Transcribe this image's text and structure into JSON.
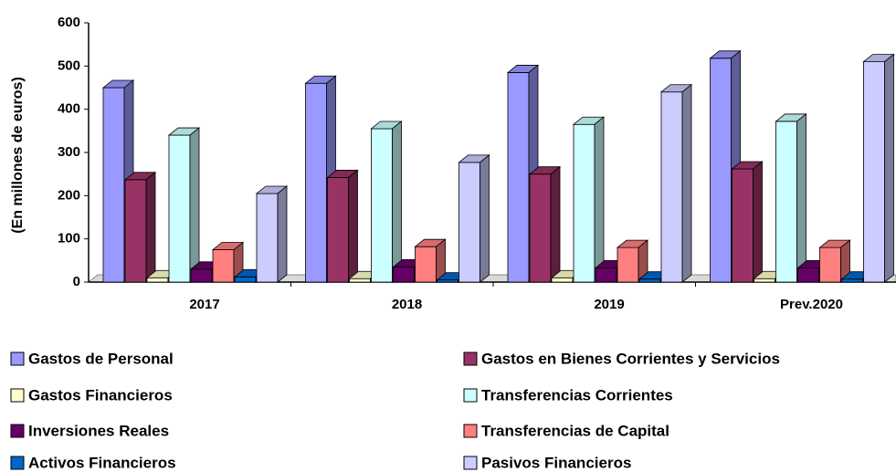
{
  "chart_data": {
    "type": "bar3d",
    "y_label": "(En millones de euros)",
    "categories": [
      "2017",
      "2018",
      "2019",
      "Prev.2020"
    ],
    "ylim": [
      0,
      600
    ],
    "yticks": [
      0,
      100,
      200,
      300,
      400,
      500,
      600
    ],
    "series": [
      {
        "name": "Gastos de Personal",
        "color": "#9999ff",
        "values": [
          450,
          460,
          485,
          518
        ]
      },
      {
        "name": "Gastos en Bienes Corrientes y Servicios",
        "color": "#993366",
        "values": [
          237,
          242,
          250,
          262
        ]
      },
      {
        "name": "Gastos Financieros",
        "color": "#ffffcc",
        "values": [
          10,
          8,
          10,
          8
        ]
      },
      {
        "name": "Transferencias Corrientes",
        "color": "#ccffff",
        "values": [
          340,
          355,
          365,
          372
        ]
      },
      {
        "name": "Inversiones Reales",
        "color": "#660066",
        "values": [
          30,
          35,
          33,
          33
        ]
      },
      {
        "name": "Transferencias de Capital",
        "color": "#ff8080",
        "values": [
          75,
          82,
          80,
          80
        ]
      },
      {
        "name": "Activos Financieros",
        "color": "#0066cc",
        "values": [
          12,
          5,
          7,
          7
        ]
      },
      {
        "name": "Pasivos Financieros",
        "color": "#ccccff",
        "values": [
          205,
          277,
          440,
          510
        ]
      }
    ]
  }
}
